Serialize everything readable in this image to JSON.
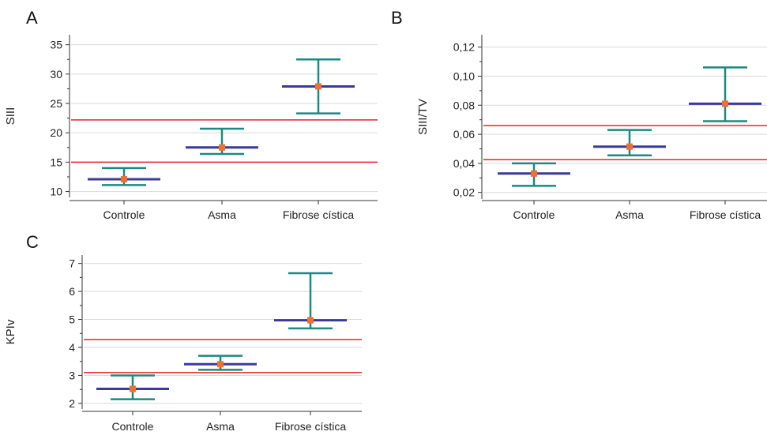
{
  "colors": {
    "reference_line": "#e8202a",
    "error_bar": "#1a8a80",
    "median_bar": "#3a3a9a",
    "point": "#f07030",
    "axis": "#333333",
    "grid": "#d9d9d9"
  },
  "chart_data": [
    {
      "id": "A",
      "type": "error_bar",
      "panel_label": "A",
      "ylabel": "SIII",
      "categories": [
        "Controle",
        "Asma",
        "Fibrose cística"
      ],
      "yticks": [
        10,
        15,
        20,
        25,
        30,
        35
      ],
      "ylim": [
        9,
        36.7
      ],
      "grid": "horizontal",
      "reference_lines": [
        15,
        22.2
      ],
      "series": [
        {
          "center": [
            12.1,
            17.5,
            27.9
          ],
          "low": [
            11.1,
            16.4,
            23.3
          ],
          "high": [
            14.0,
            20.7,
            32.5
          ]
        }
      ]
    },
    {
      "id": "B",
      "type": "error_bar",
      "panel_label": "B",
      "ylabel": "SIII/TV",
      "categories": [
        "Controle",
        "Asma",
        "Fibrose cística"
      ],
      "yticks": [
        "0,02",
        "0,04",
        "0,06",
        "0,08",
        "0,10",
        "0,12"
      ],
      "ytick_values": [
        0.02,
        0.04,
        0.06,
        0.08,
        0.1,
        0.12
      ],
      "ylim": [
        0.0155,
        0.1285
      ],
      "grid": "horizontal",
      "reference_lines": [
        0.0425,
        0.066
      ],
      "series": [
        {
          "center": [
            0.033,
            0.0515,
            0.081
          ],
          "low": [
            0.0245,
            0.0455,
            0.069
          ],
          "high": [
            0.04,
            0.063,
            0.106
          ]
        }
      ]
    },
    {
      "id": "C",
      "type": "error_bar",
      "panel_label": "C",
      "ylabel": "KPIv",
      "categories": [
        "Controle",
        "Asma",
        "Fibrose cística"
      ],
      "yticks": [
        2,
        3,
        4,
        5,
        6,
        7
      ],
      "ylim": [
        1.8,
        7.3
      ],
      "grid": "horizontal",
      "reference_lines": [
        3.1,
        4.28
      ],
      "series": [
        {
          "center": [
            2.52,
            3.4,
            4.97
          ],
          "low": [
            2.15,
            3.2,
            4.68
          ],
          "high": [
            3.0,
            3.7,
            6.65
          ]
        }
      ]
    }
  ]
}
